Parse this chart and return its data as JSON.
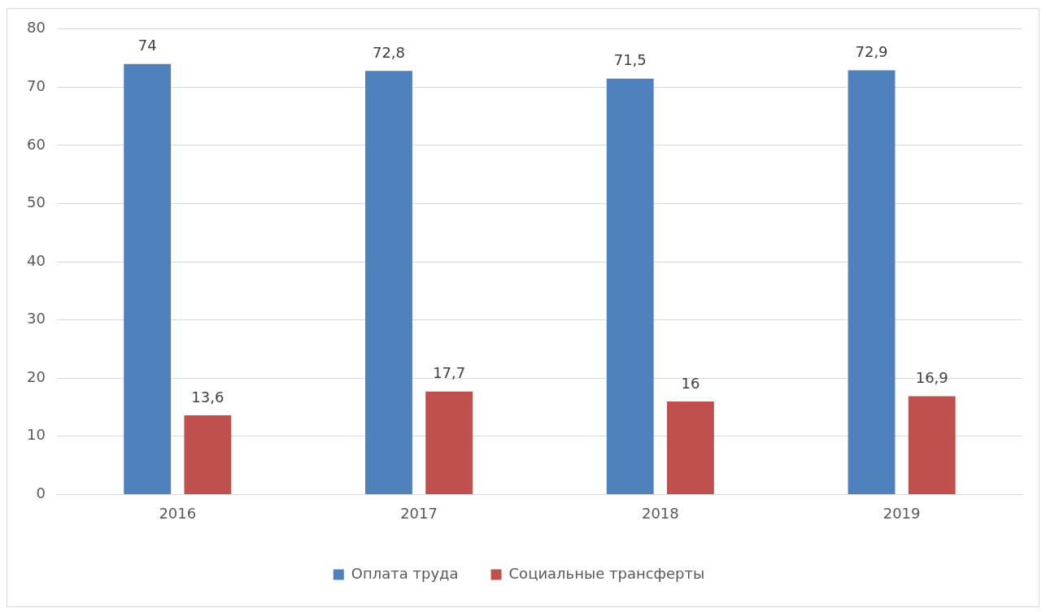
{
  "chart_data": {
    "type": "bar",
    "categories": [
      "2016",
      "2017",
      "2018",
      "2019"
    ],
    "series": [
      {
        "name": "Оплата труда",
        "color": "#4f81bd",
        "values": [
          74,
          72.8,
          71.5,
          72.9
        ],
        "value_labels": [
          "74",
          "72,8",
          "71,5",
          "72,9"
        ]
      },
      {
        "name": "Социальные трансферты",
        "color": "#c0504d",
        "values": [
          13.6,
          17.7,
          16,
          16.9
        ],
        "value_labels": [
          "13,6",
          "17,7",
          "16",
          "16,9"
        ]
      }
    ],
    "ylim": [
      0,
      80
    ],
    "yticks": [
      0,
      10,
      20,
      30,
      40,
      50,
      60,
      70,
      80
    ],
    "grid": "y",
    "legend": "bottom"
  }
}
